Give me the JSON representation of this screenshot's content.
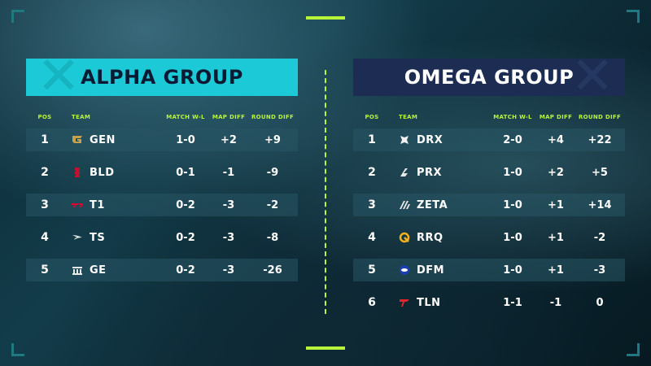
{
  "header": {
    "pos": "POS",
    "team": "TEAM",
    "match": "MATCH W-L",
    "map": "MAP DIFF",
    "round": "ROUND DIFF"
  },
  "alpha": {
    "title": "ALPHA GROUP",
    "rows": [
      {
        "pos": "1",
        "team": "GEN",
        "logo": "gen-logo-icon",
        "match": "1-0",
        "map": "+2",
        "round": "+9"
      },
      {
        "pos": "2",
        "team": "BLD",
        "logo": "bld-logo-icon",
        "match": "0-1",
        "map": "-1",
        "round": "-9"
      },
      {
        "pos": "3",
        "team": "T1",
        "logo": "t1-logo-icon",
        "match": "0-2",
        "map": "-3",
        "round": "-2"
      },
      {
        "pos": "4",
        "team": "TS",
        "logo": "ts-logo-icon",
        "match": "0-2",
        "map": "-3",
        "round": "-8"
      },
      {
        "pos": "5",
        "team": "GE",
        "logo": "ge-logo-icon",
        "match": "0-2",
        "map": "-3",
        "round": "-26"
      }
    ]
  },
  "omega": {
    "title": "OMEGA GROUP",
    "rows": [
      {
        "pos": "1",
        "team": "DRX",
        "logo": "drx-logo-icon",
        "match": "2-0",
        "map": "+4",
        "round": "+22"
      },
      {
        "pos": "2",
        "team": "PRX",
        "logo": "prx-logo-icon",
        "match": "1-0",
        "map": "+2",
        "round": "+5"
      },
      {
        "pos": "3",
        "team": "ZETA",
        "logo": "zeta-logo-icon",
        "match": "1-0",
        "map": "+1",
        "round": "+14"
      },
      {
        "pos": "4",
        "team": "RRQ",
        "logo": "rrq-logo-icon",
        "match": "1-0",
        "map": "+1",
        "round": "-2"
      },
      {
        "pos": "5",
        "team": "DFM",
        "logo": "dfm-logo-icon",
        "match": "1-0",
        "map": "+1",
        "round": "-3"
      },
      {
        "pos": "6",
        "team": "TLN",
        "logo": "tln-logo-icon",
        "match": "1-1",
        "map": "-1",
        "round": "0"
      }
    ]
  },
  "colors": {
    "accent": "#b8f53a",
    "alpha_banner": "#1cc9d6",
    "omega_banner": "#1c2c52",
    "row_shade": "#285564"
  }
}
